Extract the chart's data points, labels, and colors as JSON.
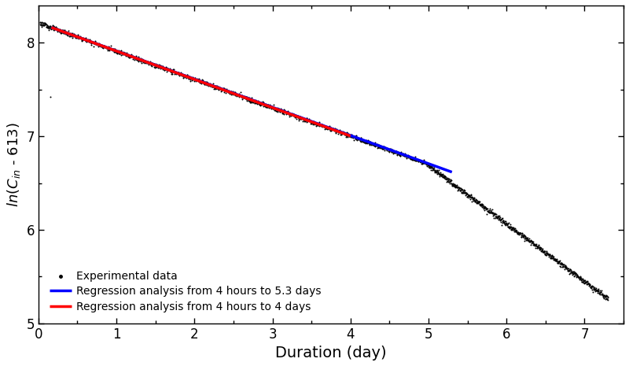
{
  "xlabel": "Duration (day)",
  "xlim": [
    0,
    7.5
  ],
  "ylim": [
    5,
    8.4
  ],
  "xticks": [
    0,
    1,
    2,
    3,
    4,
    5,
    6,
    7
  ],
  "yticks": [
    5,
    6,
    7,
    8
  ],
  "background_color": "#ffffff",
  "scatter_color": "black",
  "scatter_size": 2,
  "red_line_color": "#ff0000",
  "blue_line_color": "#0000ff",
  "red_line_start_day": 0.1667,
  "red_line_end_day": 4.0,
  "blue_line_start_day": 0.1667,
  "blue_line_end_day": 5.3,
  "red_intercept": 8.215,
  "red_slope": -0.3028,
  "blue_intercept": 8.215,
  "blue_slope": -0.3015,
  "legend_entries": [
    "Experimental data",
    "Regression analysis from 4 hours to 4 days",
    "Regression analysis from 4 hours to 5.3 days"
  ],
  "outlier_x": 0.15,
  "outlier_y": 7.42,
  "phase1_end": 4.95,
  "phase2_slope": -0.62,
  "phase2_start_x": 4.95,
  "total_end": 7.3,
  "n_phase1": 1400,
  "n_phase2": 700
}
